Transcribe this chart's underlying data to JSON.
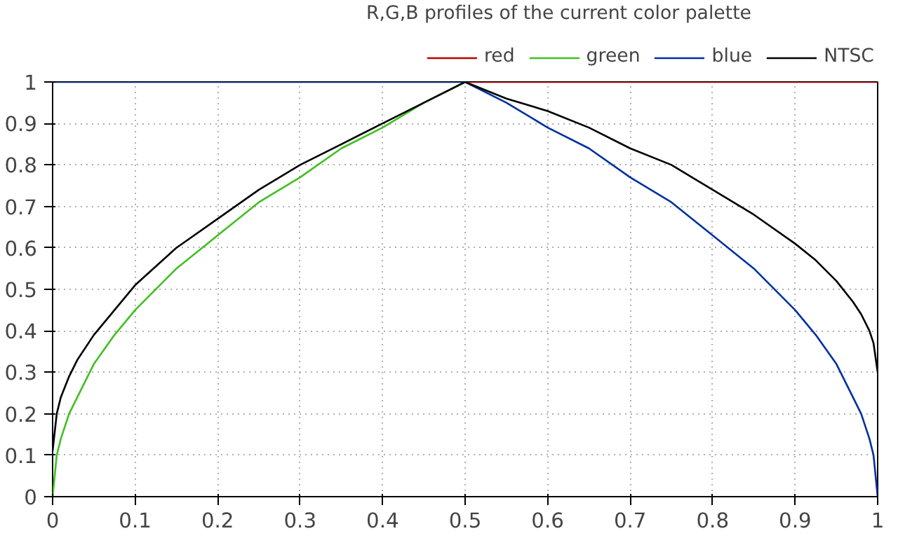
{
  "chart_data": {
    "type": "line",
    "title": "R,G,B profiles of the current color palette",
    "x": [
      0,
      0.005,
      0.01,
      0.02,
      0.03,
      0.05,
      0.075,
      0.1,
      0.15,
      0.2,
      0.25,
      0.3,
      0.35,
      0.4,
      0.45,
      0.5,
      0.55,
      0.6,
      0.65,
      0.7,
      0.75,
      0.8,
      0.85,
      0.9,
      0.925,
      0.95,
      0.97,
      0.98,
      0.99,
      0.995,
      1
    ],
    "series": [
      {
        "name": "red",
        "color": "#c00000",
        "values": [
          null,
          null,
          null,
          null,
          null,
          null,
          null,
          null,
          null,
          null,
          null,
          null,
          null,
          null,
          null,
          1,
          1,
          1,
          1,
          1,
          1,
          1,
          1,
          1,
          1,
          1,
          1,
          1,
          1,
          1,
          1
        ]
      },
      {
        "name": "green",
        "color": "#40c020",
        "values": [
          0,
          0.1,
          0.14,
          0.2,
          0.24,
          0.32,
          0.39,
          0.45,
          0.55,
          0.63,
          0.71,
          0.77,
          0.84,
          0.89,
          0.95,
          1,
          null,
          null,
          null,
          null,
          null,
          null,
          null,
          null,
          null,
          null,
          null,
          null,
          null,
          null,
          null
        ]
      },
      {
        "name": "blue",
        "color": "#0030a0",
        "values": [
          1,
          1,
          1,
          1,
          1,
          1,
          1,
          1,
          1,
          1,
          1,
          1,
          1,
          1,
          1,
          1,
          0.95,
          0.89,
          0.84,
          0.77,
          0.71,
          0.63,
          0.55,
          0.45,
          0.39,
          0.32,
          0.24,
          0.2,
          0.14,
          0.1,
          0
        ]
      },
      {
        "name": "NTSC",
        "color": "#000000",
        "values": [
          0.11,
          0.2,
          0.24,
          0.29,
          0.33,
          0.39,
          0.45,
          0.51,
          0.6,
          0.67,
          0.74,
          0.8,
          0.85,
          0.9,
          0.95,
          1,
          0.96,
          0.93,
          0.89,
          0.84,
          0.8,
          0.74,
          0.68,
          0.61,
          0.57,
          0.52,
          0.47,
          0.44,
          0.4,
          0.37,
          0.3
        ]
      }
    ],
    "xlim": [
      0,
      1
    ],
    "ylim": [
      0,
      1
    ],
    "xticks": [
      0,
      0.1,
      0.2,
      0.3,
      0.4,
      0.5,
      0.6,
      0.7,
      0.8,
      0.9,
      1
    ],
    "yticks": [
      0,
      0.1,
      0.2,
      0.3,
      0.4,
      0.5,
      0.6,
      0.7,
      0.8,
      0.9,
      1
    ],
    "grid": true,
    "legend": "top right",
    "line_style": "solid"
  }
}
